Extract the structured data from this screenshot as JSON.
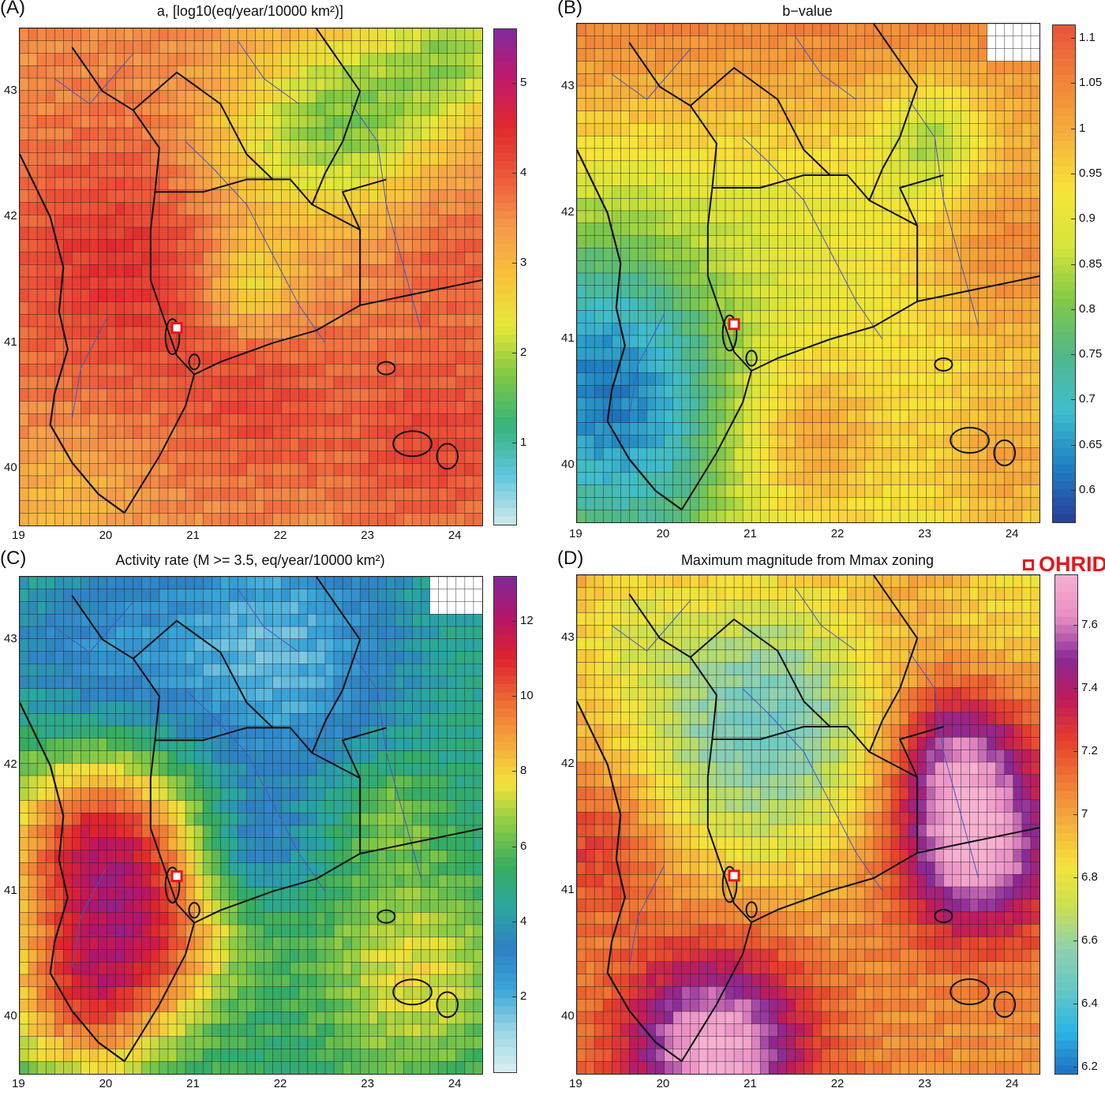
{
  "legend": {
    "marker_label": "OHRID",
    "marker_color": "#e8141c",
    "marker_icon": "hollow-square"
  },
  "axes": {
    "x_ticks": [
      "19",
      "20",
      "21",
      "22",
      "23",
      "24"
    ],
    "y_ticks": [
      "43",
      "42",
      "41",
      "40"
    ],
    "lon_range": [
      19,
      24.3
    ],
    "lat_range": [
      39.55,
      43.5
    ]
  },
  "ohrid_location": {
    "lon": 20.8,
    "lat": 41.12
  },
  "panels": [
    {
      "letter": "(A)",
      "title": "a, [log10(eq/year/10000 km²)]",
      "colorbar_ticks": [
        "5",
        "4",
        "3",
        "2",
        "1"
      ],
      "colorbar_values": [
        5,
        4,
        3,
        2,
        1
      ],
      "colorbar_range": [
        0.1,
        5.6
      ],
      "colormap": [
        "#cfeaea",
        "#5ec6de",
        "#36b37a",
        "#7ec843",
        "#e6e83a",
        "#f9c23a",
        "#f59a4a",
        "#ee5a3a",
        "#e02a2e",
        "#c2186b",
        "#7f2a9e"
      ]
    },
    {
      "letter": "(B)",
      "title": "b−value",
      "colorbar_ticks": [
        "1.1",
        "1.05",
        "1",
        "0.95",
        "0.9",
        "0.85",
        "0.8",
        "0.75",
        "0.7",
        "0.65",
        "0.6"
      ],
      "colorbar_values": [
        1.1,
        1.05,
        1.0,
        0.95,
        0.9,
        0.85,
        0.8,
        0.75,
        0.7,
        0.65,
        0.6
      ],
      "colorbar_range": [
        0.565,
        1.115
      ],
      "colormap": [
        "#283e98",
        "#1e7fc2",
        "#3fbdd0",
        "#4fb88a",
        "#80c848",
        "#d6e43a",
        "#f8e438",
        "#f6b03c",
        "#f18338",
        "#e9523a"
      ]
    },
    {
      "letter": "(C)",
      "title": "Activity rate (M >= 3.5, eq/year/10000 km²)",
      "colorbar_ticks": [
        "12",
        "10",
        "8",
        "6",
        "4",
        "2"
      ],
      "colorbar_values": [
        12,
        10,
        8,
        6,
        4,
        2
      ],
      "colorbar_range": [
        0,
        13.2
      ],
      "colormap": [
        "#d8eef0",
        "#9ad6e4",
        "#3aa6d8",
        "#2f7fc4",
        "#2aa7a0",
        "#37ad5e",
        "#8ccc44",
        "#f3e23a",
        "#f5a63c",
        "#ee6a34",
        "#e0242c",
        "#b51468",
        "#7e2a9c"
      ]
    },
    {
      "letter": "(D)",
      "title": "Maximum magnitude from Mmax zoning",
      "colorbar_ticks": [
        "7.6",
        "7.4",
        "7.2",
        "7",
        "6.8",
        "6.6",
        "6.4",
        "6.2"
      ],
      "colorbar_values": [
        7.6,
        7.4,
        7.2,
        7.0,
        6.8,
        6.6,
        6.4,
        6.2
      ],
      "colorbar_range": [
        6.18,
        7.76
      ],
      "colormap": [
        "#1f6fc0",
        "#2ab4e6",
        "#64c8c6",
        "#8fd0b0",
        "#c8e050",
        "#f6e23a",
        "#f6b03c",
        "#f07c36",
        "#e6402c",
        "#c01a5a",
        "#8a2a96",
        "#e88ec4",
        "#f6b0d0"
      ]
    }
  ]
}
